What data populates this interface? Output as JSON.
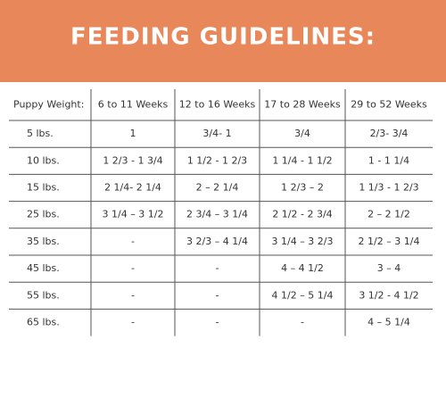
{
  "header": {
    "title": "FEEDING GUIDELINES:"
  },
  "table": {
    "columns": [
      "Puppy Weight:",
      "6 to 11 Weeks",
      "12 to 16 Weeks",
      "17 to 28 Weeks",
      "29 to 52 Weeks"
    ],
    "rows": [
      [
        "5 lbs.",
        "1",
        "3/4- 1",
        "3/4",
        "2/3- 3/4"
      ],
      [
        "10 lbs.",
        "1 2/3 - 1 3/4",
        "1 1/2 - 1 2/3",
        "1 1/4 - 1 1/2",
        "1 - 1 1/4"
      ],
      [
        "15 lbs.",
        "2 1/4- 2 1/4",
        "2 – 2 1/4",
        "1 2/3 – 2",
        "1 1/3 - 1 2/3"
      ],
      [
        "25 lbs.",
        "3 1/4 – 3 1/2",
        "2 3/4 – 3 1/4",
        "2 1/2 - 2 3/4",
        "2 – 2 1/2"
      ],
      [
        "35 lbs.",
        "-",
        "3 2/3 – 4 1/4",
        "3 1/4 – 3 2/3",
        "2 1/2 – 3 1/4"
      ],
      [
        "45 lbs.",
        "-",
        "-",
        "4 – 4 1/2",
        "3 – 4"
      ],
      [
        "55 lbs.",
        "-",
        "-",
        "4 1/2 – 5 1/4",
        "3 1/2 - 4 1/2"
      ],
      [
        "65 lbs.",
        "-",
        "-",
        "-",
        "4 – 5 1/4"
      ]
    ]
  }
}
